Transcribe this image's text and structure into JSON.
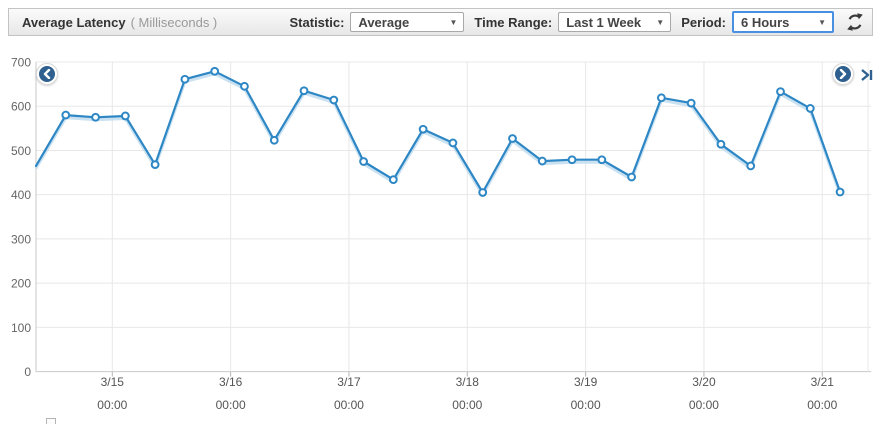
{
  "toolbar": {
    "title": "Average Latency",
    "units": "( Milliseconds )",
    "statistic": {
      "label": "Statistic:",
      "value": "Average"
    },
    "time_range": {
      "label": "Time Range:",
      "value": "Last 1 Week"
    },
    "period": {
      "label": "Period:",
      "value": "6 Hours"
    },
    "caret": "▼"
  },
  "chart_data": {
    "type": "line",
    "title": "Average Latency",
    "ylabel": "Milliseconds",
    "statistic": "Average",
    "time_range": "Last 1 Week",
    "period": "6 Hours",
    "ylim": [
      0,
      700
    ],
    "y_ticks": [
      700,
      600,
      500,
      400,
      300,
      200,
      100,
      0
    ],
    "x_day_labels": [
      "3/15",
      "3/16",
      "3/17",
      "3/18",
      "3/19",
      "3/20",
      "3/21"
    ],
    "x_time_label": "00:00",
    "grid": true,
    "legend_position": "bottom-left",
    "series": [
      {
        "name": "Average Latency (Milliseconds)",
        "color": "#2e87c5",
        "values": [
          465,
          580,
          575,
          578,
          468,
          661,
          679,
          645,
          523,
          635,
          614,
          475,
          434,
          548,
          517,
          405,
          527,
          476,
          479,
          479,
          440,
          619,
          607,
          514,
          465,
          633,
          595,
          406
        ]
      }
    ]
  },
  "colors": {
    "line": "#2e87c5",
    "line_shadow": "#bcd9ee",
    "grid": "#e8e8e8",
    "axis": "#c9c9c9",
    "tick_text": "#666666",
    "nav_circle": "#2f608f",
    "focus_border": "#4a90e2",
    "icon": "#3a3a3a"
  }
}
